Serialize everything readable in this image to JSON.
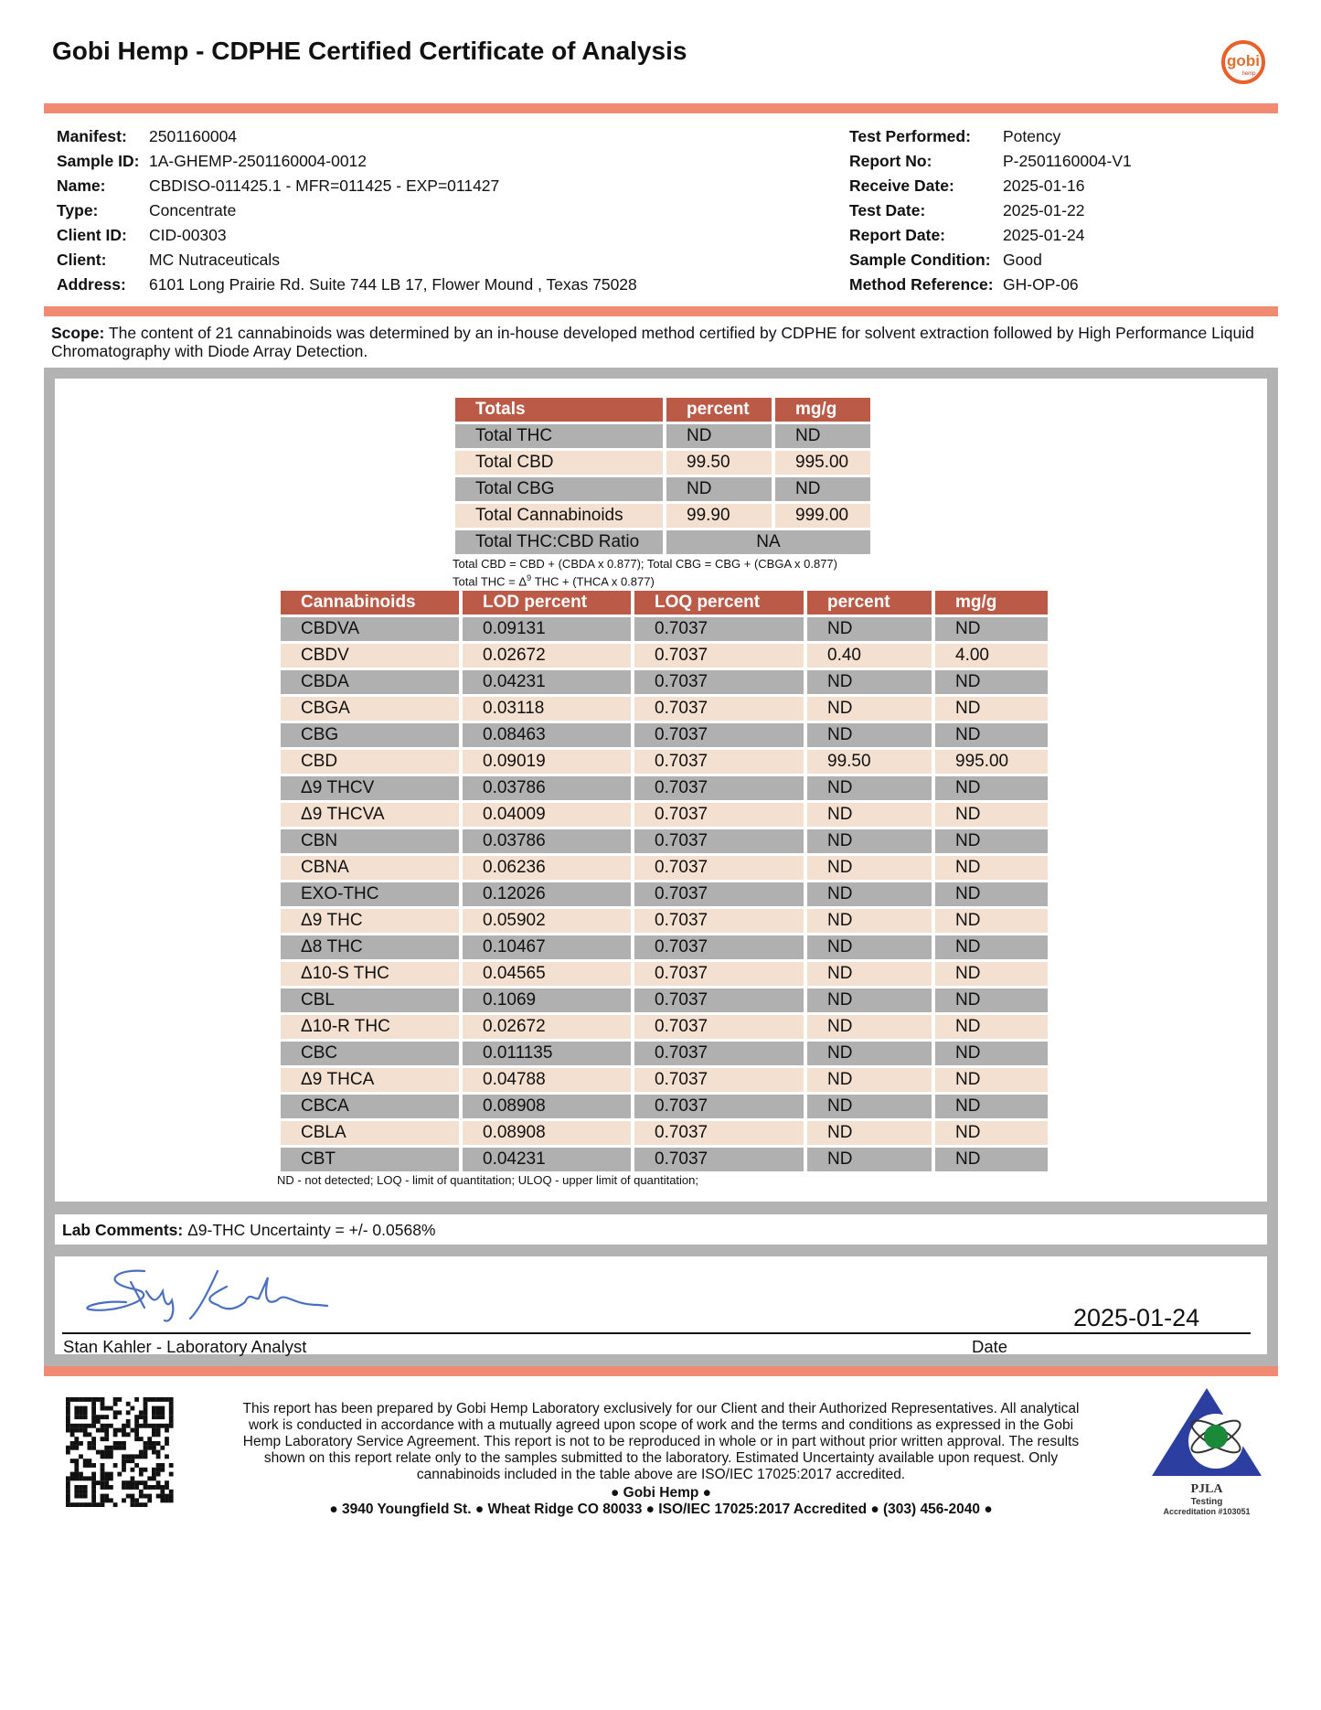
{
  "header": {
    "title": "Gobi Hemp - CDPHE Certified Certificate of Analysis",
    "logo_text": "gobi hemp",
    "accent": "#f08a72"
  },
  "info_left": [
    {
      "label": "Manifest:",
      "value": "2501160004"
    },
    {
      "label": "Sample ID:",
      "value": "1A-GHEMP-2501160004-0012"
    },
    {
      "label": "Name:",
      "value": "CBDISO-011425.1 - MFR=011425 - EXP=011427"
    },
    {
      "label": "Type:",
      "value": "Concentrate"
    },
    {
      "label": "Client ID:",
      "value": "CID-00303"
    },
    {
      "label": "Client:",
      "value": "MC Nutraceuticals"
    },
    {
      "label": "Address:",
      "value": "6101 Long Prairie Rd. Suite 744 LB 17, Flower Mound , Texas 75028"
    }
  ],
  "info_right": [
    {
      "label": "Test Performed:",
      "value": "Potency"
    },
    {
      "label": "Report No:",
      "value": "P-2501160004-V1"
    },
    {
      "label": "Receive Date:",
      "value": "2025-01-16"
    },
    {
      "label": "Test Date:",
      "value": "2025-01-22"
    },
    {
      "label": "Report Date:",
      "value": "2025-01-24"
    },
    {
      "label": "Sample Condition:",
      "value": "Good"
    },
    {
      "label": "Method Reference:",
      "value": "GH-OP-06"
    }
  ],
  "scope": {
    "label": "Scope:",
    "text": "The content of 21 cannabinoids was determined by an in-house developed method certified by CDPHE for solvent extraction followed by High Performance Liquid Chromatography with Diode Array Detection."
  },
  "totals": {
    "headers": [
      "Totals",
      "percent",
      "mg/g"
    ],
    "rows": [
      [
        "Total THC",
        "ND",
        "ND"
      ],
      [
        "Total CBD",
        "99.50",
        "995.00"
      ],
      [
        "Total CBG",
        "ND",
        "ND"
      ],
      [
        "Total Cannabinoids",
        "99.90",
        "999.00"
      ]
    ],
    "ratio": {
      "label": "Total THC:CBD Ratio",
      "value": "NA"
    },
    "formula1": "Total CBD = CBD + (CBDA x 0.877); Total CBG = CBG + (CBGA x 0.877)",
    "formula2_a": "Total THC = Δ",
    "formula2_sup": "9",
    "formula2_b": " THC + (THCA x 0.877)"
  },
  "cannabinoids": {
    "headers": [
      "Cannabinoids",
      "LOD percent",
      "LOQ percent",
      "percent",
      "mg/g"
    ],
    "rows": [
      [
        "CBDVA",
        "0.09131",
        "0.7037",
        "ND",
        "ND"
      ],
      [
        "CBDV",
        "0.02672",
        "0.7037",
        "0.40",
        "4.00"
      ],
      [
        "CBDA",
        "0.04231",
        "0.7037",
        "ND",
        "ND"
      ],
      [
        "CBGA",
        "0.03118",
        "0.7037",
        "ND",
        "ND"
      ],
      [
        "CBG",
        "0.08463",
        "0.7037",
        "ND",
        "ND"
      ],
      [
        "CBD",
        "0.09019",
        "0.7037",
        "99.50",
        "995.00"
      ],
      [
        "Δ9 THCV",
        "0.03786",
        "0.7037",
        "ND",
        "ND"
      ],
      [
        "Δ9 THCVA",
        "0.04009",
        "0.7037",
        "ND",
        "ND"
      ],
      [
        "CBN",
        "0.03786",
        "0.7037",
        "ND",
        "ND"
      ],
      [
        "CBNA",
        "0.06236",
        "0.7037",
        "ND",
        "ND"
      ],
      [
        "EXO-THC",
        "0.12026",
        "0.7037",
        "ND",
        "ND"
      ],
      [
        "Δ9 THC",
        "0.05902",
        "0.7037",
        "ND",
        "ND"
      ],
      [
        "Δ8 THC",
        "0.10467",
        "0.7037",
        "ND",
        "ND"
      ],
      [
        "Δ10-S THC",
        "0.04565",
        "0.7037",
        "ND",
        "ND"
      ],
      [
        "CBL",
        "0.1069",
        "0.7037",
        "ND",
        "ND"
      ],
      [
        "Δ10-R THC",
        "0.02672",
        "0.7037",
        "ND",
        "ND"
      ],
      [
        "CBC",
        "0.011135",
        "0.7037",
        "ND",
        "ND"
      ],
      [
        "Δ9 THCA",
        "0.04788",
        "0.7037",
        "ND",
        "ND"
      ],
      [
        "CBCA",
        "0.08908",
        "0.7037",
        "ND",
        "ND"
      ],
      [
        "CBLA",
        "0.08908",
        "0.7037",
        "ND",
        "ND"
      ],
      [
        "CBT",
        "0.04231",
        "0.7037",
        "ND",
        "ND"
      ]
    ],
    "footnote": "ND - not detected; LOQ - limit of quantitation; ULOQ - upper limit of quantitation;"
  },
  "comments": {
    "label": "Lab Comments:",
    "text": "Δ9-THC Uncertainty = +/- 0.0568%"
  },
  "signature": {
    "signer": "Stan Kahler - Laboratory Analyst",
    "date_label": "Date",
    "date": "2025-01-24"
  },
  "footer": {
    "disclaimer": "This report has been prepared by Gobi Hemp Laboratory exclusively for our Client and their Authorized Representatives. All analytical work is conducted in accordance with a mutually agreed upon scope of work and the terms and conditions as expressed in the Gobi Hemp Laboratory Service Agreement. This report is not to be reproduced in whole or in part without prior written approval. The results shown on this report relate only to the samples submitted to the laboratory. Estimated Uncertainty available upon request. Only cannabinoids included in the table above are ISO/IEC 17025:2017 accredited.",
    "company": "● Gobi Hemp ●",
    "address": "● 3940 Youngfield St. ● Wheat Ridge CO 80033 ● ISO/IEC 17025:2017 Accredited ● (303) 456-2040 ●",
    "pjla_lines": [
      "PJLA",
      "Testing",
      "Accreditation #103051"
    ]
  }
}
